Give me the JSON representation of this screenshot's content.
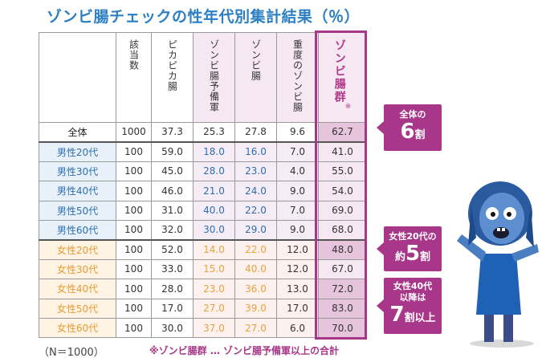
{
  "title": "ゾンビ腸チェックの性年代別集計結果（％）",
  "headers": [
    "該当数",
    "ピカピカ腸",
    "ゾンビ腸予備軍",
    "ゾンビ腸",
    "重度のゾンビ腸",
    "ゾンビ腸群"
  ],
  "header_mark": "※",
  "rows": [
    {
      "label": "全体",
      "group": "total",
      "values": [
        "1000",
        "37.3",
        "25.3",
        "27.8",
        "9.6",
        "62.7"
      ]
    },
    {
      "label": "男性20代",
      "group": "male",
      "values": [
        "100",
        "59.0",
        "18.0",
        "16.0",
        "7.0",
        "41.0"
      ]
    },
    {
      "label": "男性30代",
      "group": "male",
      "values": [
        "100",
        "45.0",
        "28.0",
        "23.0",
        "4.0",
        "55.0"
      ]
    },
    {
      "label": "男性40代",
      "group": "male",
      "values": [
        "100",
        "46.0",
        "21.0",
        "24.0",
        "9.0",
        "54.0"
      ]
    },
    {
      "label": "男性50代",
      "group": "male",
      "values": [
        "100",
        "31.0",
        "40.0",
        "22.0",
        "7.0",
        "69.0"
      ]
    },
    {
      "label": "男性60代",
      "group": "male",
      "values": [
        "100",
        "32.0",
        "30.0",
        "29.0",
        "9.0",
        "68.0"
      ]
    },
    {
      "label": "女性20代",
      "group": "female",
      "values": [
        "100",
        "52.0",
        "14.0",
        "22.0",
        "12.0",
        "48.0"
      ]
    },
    {
      "label": "女性30代",
      "group": "female",
      "values": [
        "100",
        "33.0",
        "15.0",
        "40.0",
        "12.0",
        "67.0"
      ]
    },
    {
      "label": "女性40代",
      "group": "female",
      "values": [
        "100",
        "28.0",
        "23.0",
        "36.0",
        "13.0",
        "72.0"
      ]
    },
    {
      "label": "女性50代",
      "group": "female",
      "values": [
        "100",
        "17.0",
        "27.0",
        "39.0",
        "17.0",
        "83.0"
      ]
    },
    {
      "label": "女性60代",
      "group": "female",
      "values": [
        "100",
        "30.0",
        "37.0",
        "27.0",
        "6.0",
        "70.0"
      ]
    }
  ],
  "callouts": [
    {
      "small": "全体の",
      "big": "6",
      "suffix": "割"
    },
    {
      "small": "女性20代の",
      "prefix": "約",
      "big": "5",
      "suffix": "割"
    },
    {
      "small": "女性40代",
      "small2": "以降は",
      "big": "7",
      "suffix": "割以上"
    }
  ],
  "footer": {
    "n": "（N＝1000）",
    "note": "※ゾンビ腸群 … ゾンビ腸予備軍以上の合計"
  },
  "colors": {
    "title": "#2c7fc3",
    "accent": "#a8378a",
    "male": "#2c6fae",
    "female": "#e59a33"
  },
  "chart_data": {
    "type": "table",
    "title": "ゾンビ腸チェックの性年代別集計結果（％）",
    "columns": [
      "該当数",
      "ピカピカ腸",
      "ゾンビ腸予備軍",
      "ゾンビ腸",
      "重度のゾンビ腸",
      "ゾンビ腸群※"
    ],
    "row_labels": [
      "全体",
      "男性20代",
      "男性30代",
      "男性40代",
      "男性50代",
      "男性60代",
      "女性20代",
      "女性30代",
      "女性40代",
      "女性50代",
      "女性60代"
    ],
    "cells": [
      [
        1000,
        37.3,
        25.3,
        27.8,
        9.6,
        62.7
      ],
      [
        100,
        59.0,
        18.0,
        16.0,
        7.0,
        41.0
      ],
      [
        100,
        45.0,
        28.0,
        23.0,
        4.0,
        55.0
      ],
      [
        100,
        46.0,
        21.0,
        24.0,
        9.0,
        54.0
      ],
      [
        100,
        31.0,
        40.0,
        22.0,
        7.0,
        69.0
      ],
      [
        100,
        32.0,
        30.0,
        29.0,
        9.0,
        68.0
      ],
      [
        100,
        52.0,
        14.0,
        22.0,
        12.0,
        48.0
      ],
      [
        100,
        33.0,
        15.0,
        40.0,
        12.0,
        67.0
      ],
      [
        100,
        28.0,
        23.0,
        36.0,
        13.0,
        72.0
      ],
      [
        100,
        17.0,
        27.0,
        39.0,
        17.0,
        83.0
      ],
      [
        100,
        30.0,
        37.0,
        27.0,
        6.0,
        70.0
      ]
    ]
  }
}
